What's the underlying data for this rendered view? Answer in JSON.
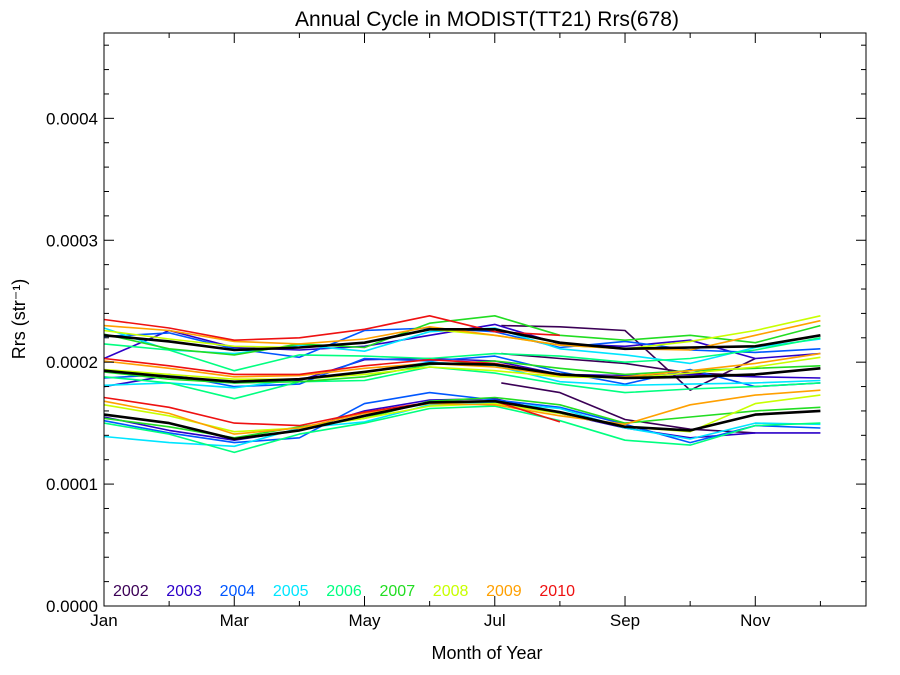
{
  "chart_data": {
    "type": "line",
    "title": "Annual Cycle in MODIST(TT21) Rrs(678)",
    "xlabel": "Month of Year",
    "ylabel": "Rrs (str⁻¹)",
    "xlim": [
      1,
      12.7
    ],
    "ylim": [
      0.0,
      0.00047
    ],
    "x_ticks": [
      {
        "value": 1,
        "label": "Jan"
      },
      {
        "value": 3,
        "label": "Mar"
      },
      {
        "value": 5,
        "label": "May"
      },
      {
        "value": 7,
        "label": "Jul"
      },
      {
        "value": 9,
        "label": "Sep"
      },
      {
        "value": 11,
        "label": "Nov"
      }
    ],
    "y_ticks": [
      {
        "value": 0.0,
        "label": "0.0000"
      },
      {
        "value": 0.0001,
        "label": "0.0001"
      },
      {
        "value": 0.0002,
        "label": "0.0002"
      },
      {
        "value": 0.0003,
        "label": "0.0003"
      },
      {
        "value": 0.0004,
        "label": "0.0004"
      }
    ],
    "grid": false,
    "legend_position": "bottom-left",
    "x": [
      1,
      2,
      3,
      4,
      5,
      6,
      7,
      8,
      9,
      10,
      11,
      12
    ],
    "series": [
      {
        "name": "2002",
        "color": "#3b0056",
        "groups": [
          {
            "x": [
              7.1,
              8,
              9,
              10,
              11
            ],
            "values": [
              0.00023,
              0.000229,
              0.000226,
              0.000177,
              0.000203
            ]
          },
          {
            "x": [
              7.1,
              8,
              9,
              10,
              11
            ],
            "values": [
              0.000207,
              0.000203,
              0.000199,
              0.000191,
              0.000189
            ]
          },
          {
            "x": [
              7.1,
              8,
              9,
              10,
              11
            ],
            "values": [
              0.000183,
              0.000175,
              0.000153,
              0.000145,
              0.000142
            ]
          }
        ]
      },
      {
        "name": "2003",
        "color": "#2c00c8",
        "groups": [
          {
            "x": [
              1,
              2,
              3,
              4,
              5,
              6,
              7,
              8,
              9,
              10,
              11,
              12
            ],
            "values": [
              0.000203,
              0.000226,
              0.000212,
              0.00021,
              0.000213,
              0.000222,
              0.000231,
              0.000215,
              0.000213,
              0.000218,
              0.000203,
              0.000207
            ]
          },
          {
            "x": [
              1,
              2,
              3,
              4,
              5,
              6,
              7,
              8,
              9,
              10,
              11,
              12
            ],
            "values": [
              0.00018,
              0.000189,
              0.000183,
              0.000185,
              0.000202,
              0.000203,
              0.000201,
              0.00019,
              0.000189,
              0.00019,
              0.000188,
              0.000187
            ]
          },
          {
            "x": [
              1,
              2,
              3,
              4,
              5,
              6,
              7,
              8,
              9,
              10,
              11,
              12
            ],
            "values": [
              0.000155,
              0.000144,
              0.000136,
              0.000144,
              0.00016,
              0.000169,
              0.00017,
              0.000158,
              0.000146,
              0.000138,
              0.000142,
              0.000142
            ]
          }
        ]
      },
      {
        "name": "2004",
        "color": "#0057ff",
        "groups": [
          {
            "x": [
              1,
              2,
              3,
              4,
              5,
              6,
              7,
              8,
              9,
              10,
              11,
              12
            ],
            "values": [
              0.000221,
              0.000224,
              0.000211,
              0.000204,
              0.000226,
              0.000228,
              0.000225,
              0.000212,
              0.000217,
              0.00021,
              0.000208,
              0.000211
            ]
          },
          {
            "x": [
              1,
              2,
              3,
              4,
              5,
              6,
              7,
              8,
              9,
              10,
              11,
              12
            ],
            "values": [
              0.000187,
              0.00019,
              0.00018,
              0.000182,
              0.000203,
              0.000201,
              0.000205,
              0.000192,
              0.000182,
              0.000194,
              0.00018,
              0.000183
            ]
          },
          {
            "x": [
              1,
              2,
              3,
              4,
              5,
              6,
              7,
              8,
              9,
              10,
              11,
              12
            ],
            "values": [
              0.000152,
              0.000142,
              0.000134,
              0.000138,
              0.000166,
              0.000175,
              0.000169,
              0.000163,
              0.000149,
              0.000134,
              0.000148,
              0.000146
            ]
          }
        ]
      },
      {
        "name": "2005",
        "color": "#00e5ff",
        "groups": [
          {
            "x": [
              1,
              2,
              3,
              4,
              5,
              6,
              7,
              8,
              9,
              10,
              11,
              12
            ],
            "values": [
              0.000228,
              0.00021,
              0.000207,
              0.000214,
              0.000209,
              0.000225,
              0.000228,
              0.000211,
              0.000206,
              0.000199,
              0.000212,
              0.000219
            ]
          },
          {
            "x": [
              1,
              2,
              3,
              4,
              5,
              6,
              7,
              8,
              9,
              10,
              11,
              12
            ],
            "values": [
              0.000181,
              0.000183,
              0.000179,
              0.000186,
              0.000192,
              0.0002,
              0.000197,
              0.000184,
              0.000181,
              0.000182,
              0.000183,
              0.000185
            ]
          },
          {
            "x": [
              1,
              2,
              3,
              4,
              5,
              6,
              7,
              8,
              9,
              10,
              11,
              12
            ],
            "values": [
              0.000139,
              0.000134,
              0.000131,
              0.000146,
              0.000151,
              0.000165,
              0.000167,
              0.000162,
              0.000146,
              0.000137,
              0.00015,
              0.000149
            ]
          }
        ]
      },
      {
        "name": "2006",
        "color": "#00ff80",
        "groups": [
          {
            "x": [
              1,
              2,
              3,
              4,
              5,
              6,
              7,
              8,
              9,
              10,
              11,
              12
            ],
            "values": [
              0.000215,
              0.00021,
              0.000193,
              0.000206,
              0.000205,
              0.000203,
              0.000207,
              0.000205,
              0.0002,
              0.000203,
              0.00021,
              0.00022
            ]
          },
          {
            "x": [
              1,
              2,
              3,
              4,
              5,
              6,
              7,
              8,
              9,
              10,
              11,
              12
            ],
            "values": [
              0.000188,
              0.000183,
              0.00017,
              0.000184,
              0.000185,
              0.000196,
              0.000191,
              0.000182,
              0.000175,
              0.000178,
              0.00018,
              0.000183
            ]
          },
          {
            "x": [
              1,
              2,
              3,
              4,
              5,
              6,
              7,
              8,
              9,
              10,
              11,
              12
            ],
            "values": [
              0.00015,
              0.000141,
              0.000126,
              0.000141,
              0.00015,
              0.000162,
              0.000164,
              0.000152,
              0.000136,
              0.000132,
              0.000148,
              0.00015
            ]
          }
        ]
      },
      {
        "name": "2007",
        "color": "#22dd22",
        "groups": [
          {
            "x": [
              1,
              2,
              3,
              4,
              5,
              6,
              7,
              8,
              9,
              10,
              11,
              12
            ],
            "values": [
              0.000223,
              0.000211,
              0.000206,
              0.000215,
              0.000212,
              0.000232,
              0.000238,
              0.000222,
              0.000218,
              0.000222,
              0.000216,
              0.00023
            ]
          },
          {
            "x": [
              1,
              2,
              3,
              4,
              5,
              6,
              7,
              8,
              9,
              10,
              11,
              12
            ],
            "values": [
              0.000192,
              0.000186,
              0.000183,
              0.000184,
              0.000188,
              0.000198,
              0.000201,
              0.000195,
              0.00019,
              0.000193,
              0.000195,
              0.000197
            ]
          },
          {
            "x": [
              1,
              2,
              3,
              4,
              5,
              6,
              7,
              8,
              9,
              10,
              11,
              12
            ],
            "values": [
              0.000154,
              0.000147,
              0.000138,
              0.000147,
              0.000154,
              0.000168,
              0.000171,
              0.000165,
              0.00015,
              0.000155,
              0.00016,
              0.000163
            ]
          }
        ]
      },
      {
        "name": "2008",
        "color": "#c8ff00",
        "groups": [
          {
            "x": [
              1,
              2,
              3,
              4,
              5,
              6,
              7,
              8,
              9,
              10,
              11,
              12
            ],
            "values": [
              0.000226,
              0.000219,
              0.000213,
              0.000212,
              0.000216,
              0.000227,
              0.000222,
              0.000214,
              0.000211,
              0.000217,
              0.000226,
              0.000238
            ]
          },
          {
            "x": [
              1,
              2,
              3,
              4,
              5,
              6,
              7,
              8,
              9,
              10,
              11,
              12
            ],
            "values": [
              0.000194,
              0.00019,
              0.000186,
              0.000186,
              0.00019,
              0.000196,
              0.000193,
              0.000188,
              0.000187,
              0.000191,
              0.000196,
              0.000204
            ]
          },
          {
            "x": [
              1,
              2,
              3,
              4,
              5,
              6,
              7,
              8,
              9,
              10,
              11,
              12
            ],
            "values": [
              0.000165,
              0.000156,
              0.000143,
              0.000146,
              0.000154,
              0.000164,
              0.000166,
              0.000158,
              0.000147,
              0.000143,
              0.000166,
              0.000173
            ]
          }
        ]
      },
      {
        "name": "2009",
        "color": "#ffa000",
        "groups": [
          {
            "x": [
              1,
              2,
              3,
              4,
              5,
              6,
              7,
              8,
              9,
              10,
              11,
              12
            ],
            "values": [
              0.00023,
              0.000226,
              0.000217,
              0.000215,
              0.000219,
              0.000229,
              0.000222,
              0.000214,
              0.000211,
              0.00021,
              0.000222,
              0.000234
            ]
          },
          {
            "x": [
              1,
              2,
              3,
              4,
              5,
              6,
              7,
              8,
              9,
              10,
              11,
              12
            ],
            "values": [
              0.000201,
              0.000195,
              0.000188,
              0.000189,
              0.000195,
              0.000199,
              0.000196,
              0.000189,
              0.000188,
              0.000193,
              0.000199,
              0.000207
            ]
          },
          {
            "x": [
              1,
              2,
              3,
              4,
              5,
              6,
              7,
              8,
              9,
              10,
              11,
              12
            ],
            "values": [
              0.000168,
              0.000158,
              0.000141,
              0.000146,
              0.000158,
              0.000166,
              0.000165,
              0.000156,
              0.000149,
              0.000165,
              0.000173,
              0.000177
            ]
          }
        ]
      },
      {
        "name": "2010",
        "color": "#ee1111",
        "groups": [
          {
            "x": [
              1,
              2,
              3,
              4,
              5,
              6,
              7,
              8
            ],
            "values": [
              0.000235,
              0.000228,
              0.000218,
              0.00022,
              0.000227,
              0.000238,
              0.000225,
              0.000222
            ]
          },
          {
            "x": [
              1,
              2,
              3,
              4,
              5,
              6,
              7,
              8
            ],
            "values": [
              0.000203,
              0.000197,
              0.00019,
              0.00019,
              0.000197,
              0.000202,
              0.000199,
              0.00019
            ]
          },
          {
            "x": [
              1,
              2,
              3,
              4,
              5,
              6,
              7,
              8
            ],
            "values": [
              0.000171,
              0.000163,
              0.00015,
              0.000148,
              0.000159,
              0.000167,
              0.000168,
              0.000151
            ]
          }
        ]
      },
      {
        "name": "",
        "color": "#000000",
        "width": 2.6,
        "groups": [
          {
            "x": [
              1,
              2,
              3,
              4,
              5,
              6,
              7,
              8,
              9,
              10,
              11,
              12
            ],
            "values": [
              0.000222,
              0.000217,
              0.00021,
              0.000212,
              0.000216,
              0.000227,
              0.000227,
              0.000216,
              0.000211,
              0.000212,
              0.000213,
              0.000222
            ]
          },
          {
            "x": [
              1,
              2,
              3,
              4,
              5,
              6,
              7,
              8,
              9,
              10,
              11,
              12
            ],
            "values": [
              0.000193,
              0.000188,
              0.000184,
              0.000186,
              0.000192,
              0.000199,
              0.000198,
              0.00019,
              0.000187,
              0.000188,
              0.00019,
              0.000195
            ]
          },
          {
            "x": [
              1,
              2,
              3,
              4,
              5,
              6,
              7,
              8,
              9,
              10,
              11,
              12
            ],
            "values": [
              0.000157,
              0.00015,
              0.000137,
              0.000144,
              0.000156,
              0.000167,
              0.000168,
              0.000159,
              0.000147,
              0.000144,
              0.000157,
              0.00016
            ]
          }
        ]
      }
    ]
  }
}
